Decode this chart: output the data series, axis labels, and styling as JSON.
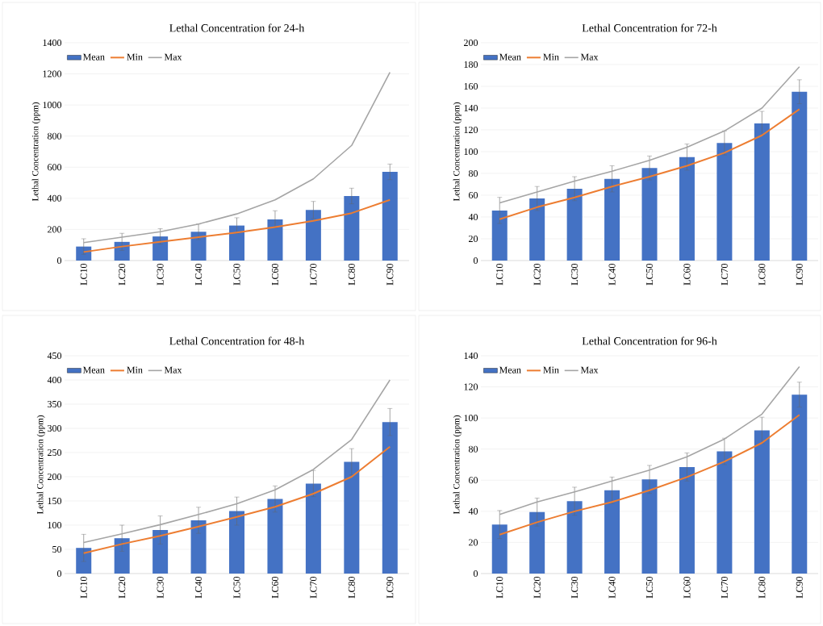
{
  "chart_data": [
    {
      "type": "bar",
      "title": "Lethal Concentration for 24-h",
      "ylabel": "Lethal Concentration (ppm)",
      "categories": [
        "LC10",
        "LC20",
        "LC30",
        "LC40",
        "LC50",
        "LC60",
        "LC70",
        "LC80",
        "LC90"
      ],
      "grid": "y",
      "legend": "top left",
      "ylim": [
        0,
        1400
      ],
      "yticks": [
        0,
        200,
        400,
        600,
        800,
        1000,
        1200,
        1400
      ],
      "series": [
        {
          "name": "Mean",
          "type": "bar",
          "color": "#4472c4",
          "values": [
            90,
            120,
            155,
            185,
            225,
            265,
            325,
            415,
            570
          ],
          "errors": [
            50,
            55,
            50,
            50,
            50,
            55,
            55,
            50,
            50
          ]
        },
        {
          "name": "Min",
          "type": "line",
          "color": "#ed7d31",
          "values": [
            55,
            90,
            120,
            150,
            180,
            215,
            255,
            305,
            390
          ]
        },
        {
          "name": "Max",
          "type": "line",
          "color": "#a5a5a5",
          "values": [
            115,
            150,
            185,
            235,
            300,
            390,
            525,
            740,
            1210
          ]
        }
      ]
    },
    {
      "type": "bar",
      "title": "Lethal Concentration for 72-h",
      "ylabel": "Lethal Concentration (ppm)",
      "categories": [
        "LC10",
        "LC20",
        "LC30",
        "LC40",
        "LC50",
        "LC60",
        "LC70",
        "LC80",
        "LC90"
      ],
      "grid": "y",
      "legend": "top left",
      "ylim": [
        0,
        200
      ],
      "yticks": [
        0,
        20,
        40,
        60,
        80,
        100,
        120,
        140,
        160,
        180,
        200
      ],
      "series": [
        {
          "name": "Mean",
          "type": "bar",
          "color": "#4472c4",
          "values": [
            46,
            57,
            66,
            75,
            85,
            95,
            108,
            126,
            155
          ],
          "errors": [
            12,
            11,
            11,
            12,
            11,
            12,
            11,
            11,
            11
          ]
        },
        {
          "name": "Min",
          "type": "line",
          "color": "#ed7d31",
          "values": [
            38,
            49,
            58,
            68,
            77,
            87,
            99,
            115,
            139
          ]
        },
        {
          "name": "Max",
          "type": "line",
          "color": "#a5a5a5",
          "values": [
            53,
            63,
            73,
            82,
            92,
            104,
            119,
            140,
            178
          ]
        }
      ]
    },
    {
      "type": "bar",
      "title": "Lethal Concentration for 48-h",
      "ylabel": "Lethal Concentration (ppm)",
      "categories": [
        "LC10",
        "LC20",
        "LC30",
        "LC40",
        "LC50",
        "LC60",
        "LC70",
        "LC80",
        "LC90"
      ],
      "grid": "y",
      "legend": "top left",
      "ylim": [
        0,
        450
      ],
      "yticks": [
        0,
        50,
        100,
        150,
        200,
        250,
        300,
        350,
        400,
        450
      ],
      "series": [
        {
          "name": "Mean",
          "type": "bar",
          "color": "#4472c4",
          "values": [
            53,
            73,
            90,
            110,
            129,
            154,
            186,
            231,
            313
          ],
          "errors": [
            28,
            27,
            29,
            27,
            29,
            27,
            27,
            27,
            28
          ]
        },
        {
          "name": "Min",
          "type": "line",
          "color": "#ed7d31",
          "values": [
            42,
            61,
            78,
            97,
            117,
            138,
            165,
            200,
            262
          ]
        },
        {
          "name": "Max",
          "type": "line",
          "color": "#a5a5a5",
          "values": [
            64,
            82,
            101,
            122,
            144,
            173,
            215,
            277,
            400
          ]
        }
      ]
    },
    {
      "type": "bar",
      "title": "Lethal Concentration for 96-h",
      "ylabel": "Lethal Concentration (ppm)",
      "categories": [
        "LC10",
        "LC20",
        "LC30",
        "LC40",
        "LC50",
        "LC60",
        "LC70",
        "LC80",
        "LC90"
      ],
      "grid": "y",
      "legend": "top left",
      "ylim": [
        0,
        140
      ],
      "yticks": [
        0,
        20,
        40,
        60,
        80,
        100,
        120,
        140
      ],
      "series": [
        {
          "name": "Mean",
          "type": "bar",
          "color": "#4472c4",
          "values": [
            31.5,
            39.5,
            46.5,
            53.5,
            60.5,
            68.5,
            78.5,
            92,
            115
          ],
          "errors": [
            9,
            9,
            9,
            8.5,
            9,
            9,
            8.5,
            8.5,
            8
          ]
        },
        {
          "name": "Min",
          "type": "line",
          "color": "#ed7d31",
          "values": [
            25,
            33,
            40,
            46,
            53.5,
            62,
            72,
            84,
            102
          ]
        },
        {
          "name": "Max",
          "type": "line",
          "color": "#a5a5a5",
          "values": [
            38,
            46,
            52.5,
            59.5,
            66.5,
            75,
            86.5,
            102.5,
            133
          ]
        }
      ]
    }
  ]
}
